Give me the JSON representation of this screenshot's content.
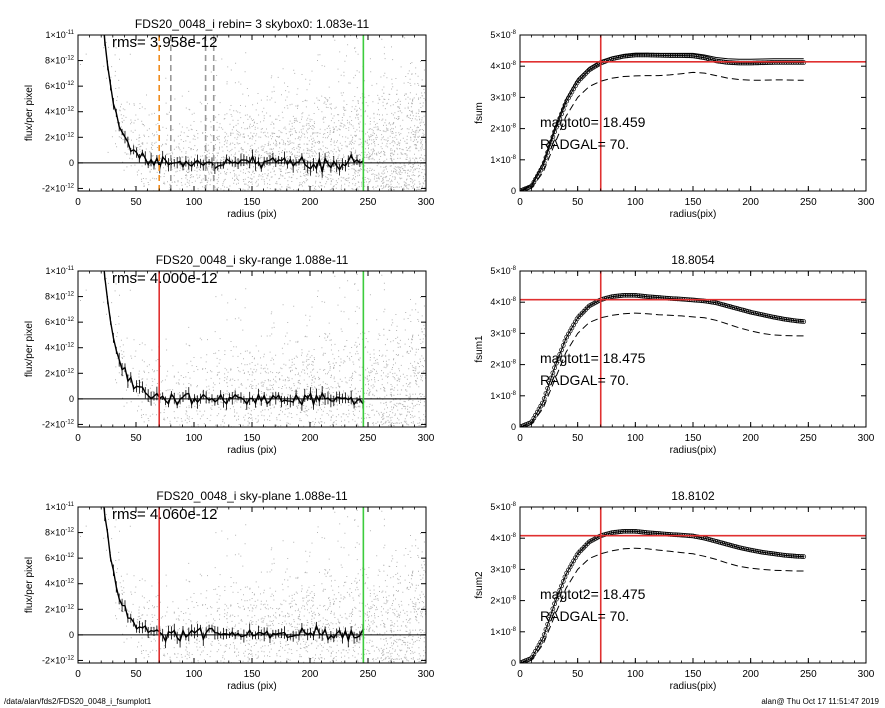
{
  "footer": {
    "path": "/data/alan/fds2/FDS20_0048_i_fsumplot1",
    "stamp": "alan@  Thu Oct 17 11:51:47 2019"
  },
  "colors": {
    "scatter": "#b4b4b4",
    "profile": "#000000",
    "dash_orange": "#f08c1e",
    "dash_gray": "#9a9a9a",
    "red": "#e03030",
    "green": "#3ccc3c"
  },
  "chart_data": [
    {
      "type": "scatter",
      "title": "FDS20_0048_i rebin= 3    skybox0:  1.083e-11",
      "annotation": "rms= 3.958e-12",
      "xlabel": "radius (pix)",
      "ylabel": "flux/per pixel",
      "xlim": [
        0,
        300
      ],
      "ylim": [
        -2.2e-12,
        1e-11
      ],
      "xticks": [
        0,
        50,
        100,
        150,
        200,
        250,
        300
      ],
      "xtick_labels": [
        "0",
        "50",
        "100",
        "150",
        "200",
        "250",
        "300"
      ],
      "yticks": [
        -2e-12,
        0,
        2e-12,
        4e-12,
        6e-12,
        8e-12,
        1e-11
      ],
      "ytick_labels": [
        {
          "m": "-2×10",
          "e": "-12"
        },
        {
          "m": "0",
          "e": ""
        },
        {
          "m": "2×10",
          "e": "-12"
        },
        {
          "m": "4×10",
          "e": "-12"
        },
        {
          "m": "6×10",
          "e": "-12"
        },
        {
          "m": "8×10",
          "e": "-12"
        },
        {
          "m": "1×10",
          "e": "-11"
        }
      ],
      "vlines": [
        {
          "x": 70,
          "color": "dash_orange",
          "dashed": true
        },
        {
          "x": 80,
          "color": "dash_gray",
          "dashed": true
        },
        {
          "x": 110,
          "color": "dash_gray",
          "dashed": true
        },
        {
          "x": 117,
          "color": "dash_gray",
          "dashed": true
        },
        {
          "x": 246,
          "color": "green",
          "dashed": false
        }
      ]
    },
    {
      "type": "line",
      "title": "",
      "annotations": [
        "magtot0=  18.459",
        "RADGAL=     70."
      ],
      "xlabel": "radius(pix)",
      "ylabel": "fsum",
      "xlim": [
        0,
        300
      ],
      "ylim": [
        0,
        5e-08
      ],
      "xticks": [
        0,
        50,
        100,
        150,
        200,
        250,
        300
      ],
      "xtick_labels": [
        "0",
        "50",
        "100",
        "150",
        "200",
        "250",
        "300"
      ],
      "yticks": [
        0,
        1e-08,
        2e-08,
        3e-08,
        4e-08,
        5e-08
      ],
      "ytick_labels": [
        {
          "m": "0",
          "e": ""
        },
        {
          "m": "1×10",
          "e": "-8"
        },
        {
          "m": "2×10",
          "e": "-8"
        },
        {
          "m": "3×10",
          "e": "-8"
        },
        {
          "m": "4×10",
          "e": "-8"
        },
        {
          "m": "5×10",
          "e": "-8"
        }
      ],
      "fsum": {
        "x": [
          0,
          10,
          20,
          30,
          40,
          50,
          60,
          70,
          80,
          90,
          100,
          110,
          120,
          130,
          140,
          150,
          160,
          170,
          180,
          190,
          200,
          210,
          220,
          230,
          240,
          246
        ],
        "y": [
          0,
          1.5e-09,
          8e-09,
          1.9e-08,
          2.85e-08,
          3.5e-08,
          3.88e-08,
          4.1e-08,
          4.24e-08,
          4.32e-08,
          4.36e-08,
          4.36e-08,
          4.35e-08,
          4.34e-08,
          4.34e-08,
          4.33e-08,
          4.27e-08,
          4.17e-08,
          4.12e-08,
          4.1e-08,
          4.1e-08,
          4.11e-08,
          4.12e-08,
          4.12e-08,
          4.12e-08,
          4.12e-08
        ]
      },
      "upper": {
        "x": [
          0,
          10,
          20,
          30,
          40,
          50,
          60,
          70,
          80,
          90,
          100,
          110,
          120,
          130,
          140,
          150,
          160,
          170,
          180,
          190,
          200,
          210,
          220,
          230,
          240,
          246
        ],
        "y": [
          0,
          2e-09,
          9e-09,
          2e-08,
          2.95e-08,
          3.6e-08,
          3.96e-08,
          4.18e-08,
          4.3e-08,
          4.37e-08,
          4.4e-08,
          4.41e-08,
          4.41e-08,
          4.41e-08,
          4.41e-08,
          4.41e-08,
          4.36e-08,
          4.28e-08,
          4.24e-08,
          4.22e-08,
          4.22e-08,
          4.23e-08,
          4.24e-08,
          4.24e-08,
          4.24e-08,
          4.24e-08
        ]
      },
      "lower": {
        "x": [
          0,
          10,
          20,
          30,
          40,
          50,
          60,
          70,
          80,
          90,
          100,
          110,
          120,
          130,
          140,
          150,
          160,
          170,
          180,
          190,
          200,
          210,
          220,
          230,
          240,
          246
        ],
        "y": [
          0,
          1e-09,
          6e-09,
          1.5e-08,
          2.4e-08,
          3e-08,
          3.35e-08,
          3.52e-08,
          3.62e-08,
          3.67e-08,
          3.69e-08,
          3.7e-08,
          3.7e-08,
          3.72e-08,
          3.76e-08,
          3.8e-08,
          3.78e-08,
          3.7e-08,
          3.62e-08,
          3.57e-08,
          3.55e-08,
          3.55e-08,
          3.56e-08,
          3.56e-08,
          3.55e-08,
          3.55e-08
        ]
      },
      "hline": 4.14e-08,
      "vline": 70
    },
    {
      "type": "scatter",
      "title": "FDS20_0048_i sky-range  1.088e-11",
      "annotation": "rms= 4.000e-12",
      "xlabel": "radius (pix)",
      "ylabel": "flux/per pixel",
      "xlim": [
        0,
        300
      ],
      "ylim": [
        -2.2e-12,
        1e-11
      ],
      "xticks": [
        0,
        50,
        100,
        150,
        200,
        250,
        300
      ],
      "xtick_labels": [
        "0",
        "50",
        "100",
        "150",
        "200",
        "250",
        "300"
      ],
      "yticks": [
        -2e-12,
        0,
        2e-12,
        4e-12,
        6e-12,
        8e-12,
        1e-11
      ],
      "ytick_labels": [
        {
          "m": "-2×10",
          "e": "-12"
        },
        {
          "m": "0",
          "e": ""
        },
        {
          "m": "2×10",
          "e": "-12"
        },
        {
          "m": "4×10",
          "e": "-12"
        },
        {
          "m": "6×10",
          "e": "-12"
        },
        {
          "m": "8×10",
          "e": "-12"
        },
        {
          "m": "1×10",
          "e": "-11"
        }
      ],
      "vlines": [
        {
          "x": 70,
          "color": "red",
          "dashed": false
        },
        {
          "x": 246,
          "color": "green",
          "dashed": false
        }
      ]
    },
    {
      "type": "line",
      "title": "18.8054",
      "annotations": [
        "magtot1=  18.475",
        "RADGAL=     70."
      ],
      "xlabel": "radius(pix)",
      "ylabel": "fsum1",
      "xlim": [
        0,
        300
      ],
      "ylim": [
        0,
        5e-08
      ],
      "xticks": [
        0,
        50,
        100,
        150,
        200,
        250,
        300
      ],
      "xtick_labels": [
        "0",
        "50",
        "100",
        "150",
        "200",
        "250",
        "300"
      ],
      "yticks": [
        0,
        1e-08,
        2e-08,
        3e-08,
        4e-08,
        5e-08
      ],
      "ytick_labels": [
        {
          "m": "0",
          "e": ""
        },
        {
          "m": "1×10",
          "e": "-8"
        },
        {
          "m": "2×10",
          "e": "-8"
        },
        {
          "m": "3×10",
          "e": "-8"
        },
        {
          "m": "4×10",
          "e": "-8"
        },
        {
          "m": "5×10",
          "e": "-8"
        }
      ],
      "fsum": {
        "x": [
          0,
          10,
          20,
          30,
          40,
          50,
          60,
          70,
          80,
          90,
          100,
          110,
          120,
          130,
          140,
          150,
          160,
          170,
          180,
          190,
          200,
          210,
          220,
          230,
          240,
          246
        ],
        "y": [
          0,
          1.5e-09,
          8e-09,
          1.9e-08,
          2.85e-08,
          3.5e-08,
          3.88e-08,
          4.08e-08,
          4.18e-08,
          4.22e-08,
          4.22e-08,
          4.18e-08,
          4.15e-08,
          4.12e-08,
          4.1e-08,
          4.07e-08,
          4.04e-08,
          3.98e-08,
          3.88e-08,
          3.78e-08,
          3.68e-08,
          3.6e-08,
          3.52e-08,
          3.45e-08,
          3.4e-08,
          3.38e-08
        ]
      },
      "lower": {
        "x": [
          0,
          10,
          20,
          30,
          40,
          50,
          60,
          70,
          80,
          90,
          100,
          110,
          120,
          130,
          140,
          150,
          160,
          170,
          180,
          190,
          200,
          210,
          220,
          230,
          240,
          246
        ],
        "y": [
          0,
          1e-09,
          6e-09,
          1.5e-08,
          2.4e-08,
          3e-08,
          3.35e-08,
          3.5e-08,
          3.58e-08,
          3.63e-08,
          3.65e-08,
          3.63e-08,
          3.6e-08,
          3.58e-08,
          3.56e-08,
          3.53e-08,
          3.5e-08,
          3.42e-08,
          3.3e-08,
          3.18e-08,
          3.08e-08,
          3e-08,
          2.95e-08,
          2.93e-08,
          2.92e-08,
          2.92e-08
        ]
      },
      "hline": 4.08e-08,
      "vline": 70
    },
    {
      "type": "scatter",
      "title": "FDS20_0048_i sky-plane  1.088e-11",
      "annotation": "rms= 4.060e-12",
      "xlabel": "radius (pix)",
      "ylabel": "flux/per pixel",
      "xlim": [
        0,
        300
      ],
      "ylim": [
        -2.2e-12,
        1e-11
      ],
      "xticks": [
        0,
        50,
        100,
        150,
        200,
        250,
        300
      ],
      "xtick_labels": [
        "0",
        "50",
        "100",
        "150",
        "200",
        "250",
        "300"
      ],
      "yticks": [
        -2e-12,
        0,
        2e-12,
        4e-12,
        6e-12,
        8e-12,
        1e-11
      ],
      "ytick_labels": [
        {
          "m": "-2×10",
          "e": "-12"
        },
        {
          "m": "0",
          "e": ""
        },
        {
          "m": "2×10",
          "e": "-12"
        },
        {
          "m": "4×10",
          "e": "-12"
        },
        {
          "m": "6×10",
          "e": "-12"
        },
        {
          "m": "8×10",
          "e": "-12"
        },
        {
          "m": "1×10",
          "e": "-11"
        }
      ],
      "vlines": [
        {
          "x": 70,
          "color": "red",
          "dashed": false
        },
        {
          "x": 246,
          "color": "green",
          "dashed": false
        }
      ]
    },
    {
      "type": "line",
      "title": "18.8102",
      "annotations": [
        "magtot2=  18.475",
        "RADGAL=     70."
      ],
      "xlabel": "radius(pix)",
      "ylabel": "fsum2",
      "xlim": [
        0,
        300
      ],
      "ylim": [
        0,
        5e-08
      ],
      "xticks": [
        0,
        50,
        100,
        150,
        200,
        250,
        300
      ],
      "xtick_labels": [
        "0",
        "50",
        "100",
        "150",
        "200",
        "250",
        "300"
      ],
      "yticks": [
        0,
        1e-08,
        2e-08,
        3e-08,
        4e-08,
        5e-08
      ],
      "ytick_labels": [
        {
          "m": "0",
          "e": ""
        },
        {
          "m": "1×10",
          "e": "-8"
        },
        {
          "m": "2×10",
          "e": "-8"
        },
        {
          "m": "3×10",
          "e": "-8"
        },
        {
          "m": "4×10",
          "e": "-8"
        },
        {
          "m": "5×10",
          "e": "-8"
        }
      ],
      "fsum": {
        "x": [
          0,
          10,
          20,
          30,
          40,
          50,
          60,
          70,
          80,
          90,
          100,
          110,
          120,
          130,
          140,
          150,
          160,
          170,
          180,
          190,
          200,
          210,
          220,
          230,
          240,
          246
        ],
        "y": [
          0,
          1.5e-09,
          8e-09,
          1.9e-08,
          2.85e-08,
          3.5e-08,
          3.88e-08,
          4.08e-08,
          4.18e-08,
          4.22e-08,
          4.22e-08,
          4.18e-08,
          4.15e-08,
          4.12e-08,
          4.1e-08,
          4.07e-08,
          4e-08,
          3.9e-08,
          3.8e-08,
          3.7e-08,
          3.62e-08,
          3.55e-08,
          3.5e-08,
          3.45e-08,
          3.42e-08,
          3.41e-08
        ]
      },
      "lower": {
        "x": [
          0,
          10,
          20,
          30,
          40,
          50,
          60,
          70,
          80,
          90,
          100,
          110,
          120,
          130,
          140,
          150,
          160,
          170,
          180,
          190,
          200,
          210,
          220,
          230,
          240,
          246
        ],
        "y": [
          0,
          1e-09,
          6e-09,
          1.5e-08,
          2.4e-08,
          3e-08,
          3.35e-08,
          3.5e-08,
          3.6e-08,
          3.66e-08,
          3.68e-08,
          3.66e-08,
          3.62e-08,
          3.58e-08,
          3.54e-08,
          3.5e-08,
          3.42e-08,
          3.32e-08,
          3.2e-08,
          3.1e-08,
          3.04e-08,
          3e-08,
          2.97e-08,
          2.96e-08,
          2.95e-08,
          2.95e-08
        ]
      },
      "hline": 4.08e-08,
      "vline": 70
    }
  ]
}
